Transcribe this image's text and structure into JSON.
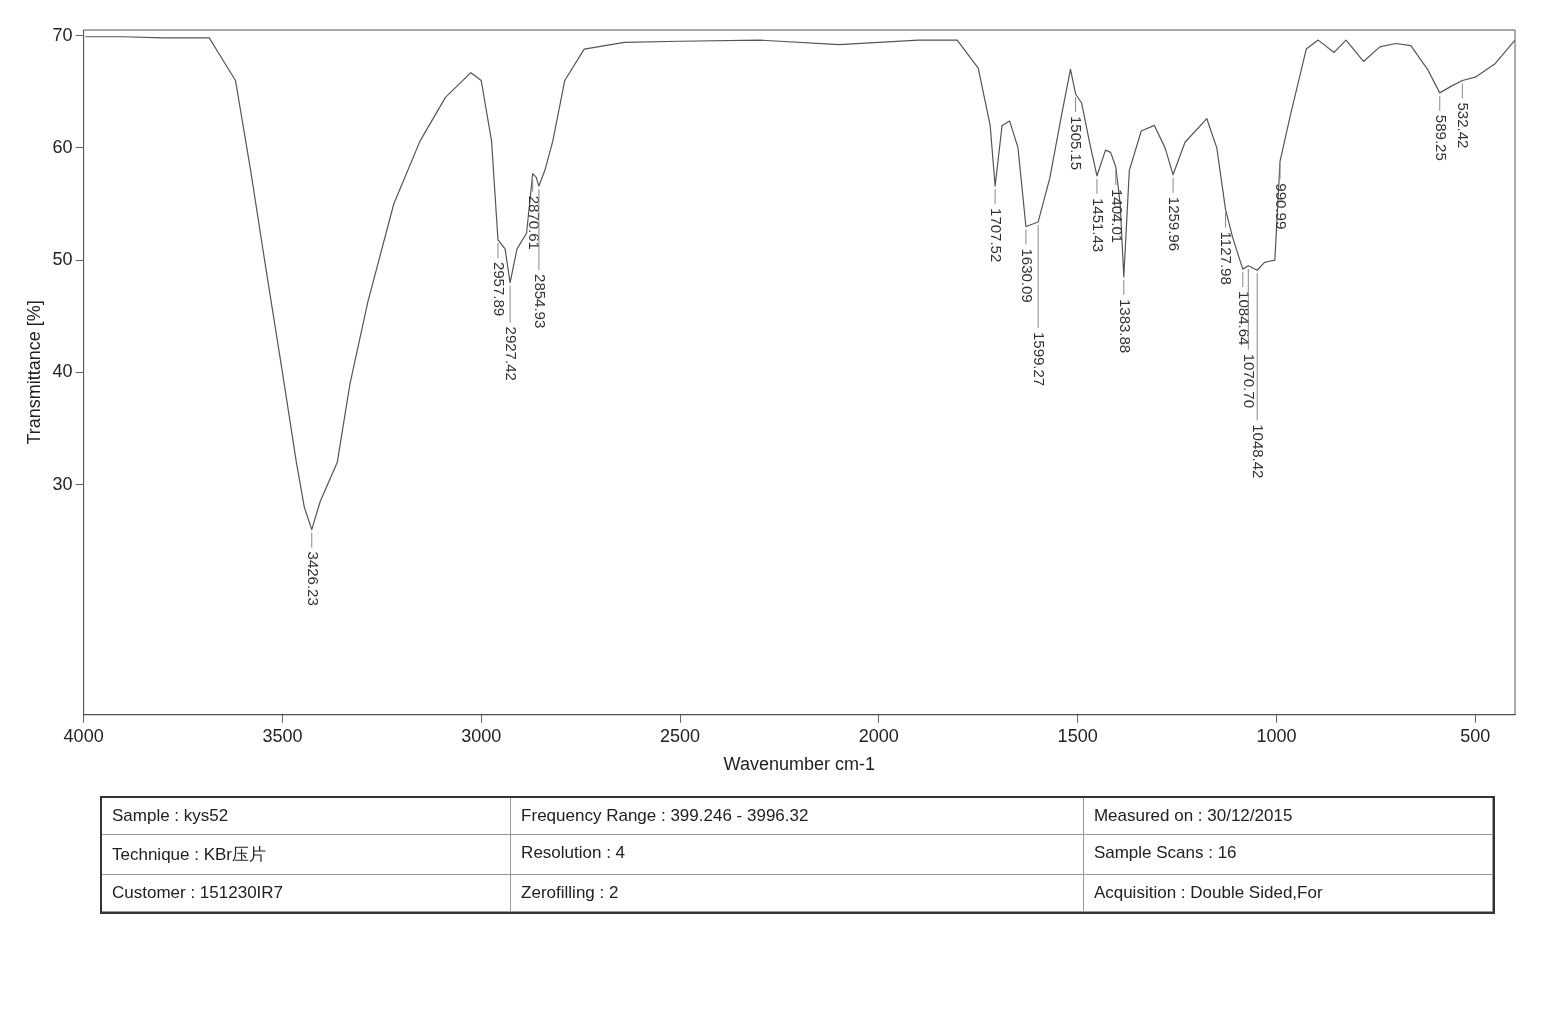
{
  "chart_data": {
    "type": "line",
    "xlabel": "Wavenumber cm-1",
    "ylabel": "Transmittance [%]",
    "xlim": [
      4000,
      400
    ],
    "xticks": [
      4000,
      3500,
      3000,
      2500,
      2000,
      1500,
      1000,
      500
    ],
    "ylim": [
      9.5,
      70.5
    ],
    "yticks": [
      30,
      40,
      50,
      60,
      70
    ],
    "grid": false,
    "legend": false,
    "marker": "none",
    "line_style": "solid",
    "series": [
      {
        "color": "#555555",
        "x": [
          3996,
          3900,
          3800,
          3700,
          3684,
          3658,
          3618,
          3580,
          3544,
          3500,
          3465,
          3445,
          3426.23,
          3405,
          3362,
          3330,
          3285,
          3220,
          3154,
          3090,
          3026,
          3000,
          2974,
          2957.89,
          2940,
          2927.42,
          2910,
          2886,
          2870.61,
          2862,
          2854.93,
          2840,
          2820,
          2790,
          2741,
          2640,
          2500,
          2300,
          2100,
          2000,
          1900,
          1803,
          1750,
          1720,
          1707.52,
          1690,
          1671,
          1650,
          1630.09,
          1599.27,
          1570,
          1540,
          1518,
          1505.15,
          1490,
          1470,
          1451.43,
          1430,
          1417,
          1404.01,
          1393,
          1383.88,
          1370,
          1340,
          1307,
          1280,
          1259.96,
          1230,
          1175,
          1150,
          1127.98,
          1110,
          1084.64,
          1070.7,
          1048.42,
          1030,
          1004,
          990.99,
          965,
          925,
          895,
          855,
          825,
          781,
          740,
          700,
          662,
          620,
          589.25,
          560,
          532.42,
          500,
          450,
          400
        ],
        "values": [
          69.9,
          69.9,
          69.8,
          69.8,
          69.8,
          68.3,
          66,
          58,
          49.8,
          40,
          32,
          28,
          26.0,
          28.5,
          32,
          39,
          46.3,
          55,
          60.6,
          64.5,
          66.7,
          66,
          60.6,
          51.8,
          51,
          48,
          51,
          52.4,
          57.7,
          57.4,
          56.6,
          58,
          60.6,
          66,
          68.8,
          69.4,
          69.5,
          69.6,
          69.2,
          69.4,
          69.6,
          69.6,
          67.1,
          62,
          56.6,
          62,
          62.4,
          60,
          53,
          53.4,
          57.3,
          63,
          67,
          64.8,
          64,
          60.5,
          57.5,
          59.8,
          59.6,
          58.3,
          55,
          48.5,
          58,
          61.5,
          62,
          60,
          57.6,
          60.5,
          62.6,
          60,
          54.5,
          52,
          49.2,
          49.5,
          49.1,
          49.8,
          50,
          58.8,
          62.9,
          68.8,
          69.6,
          68.5,
          69.6,
          67.7,
          69,
          69.3,
          69.1,
          67,
          64.9,
          65.5,
          66,
          66.3,
          67.5,
          69.6
        ]
      }
    ],
    "annotations": [
      {
        "text": "3426.23",
        "x": 3426.23,
        "y": 26.0
      },
      {
        "text": "2957.89",
        "x": 2957.89,
        "y": 51.8
      },
      {
        "text": "2927.42",
        "x": 2927.42,
        "y": 48
      },
      {
        "text": "2870.61",
        "x": 2870.61,
        "y": 57.7
      },
      {
        "text": "2854.93",
        "x": 2854.93,
        "y": 56.6
      },
      {
        "text": "1707.52",
        "x": 1707.52,
        "y": 56.6
      },
      {
        "text": "1630.09",
        "x": 1630.09,
        "y": 53
      },
      {
        "text": "1599.27",
        "x": 1599.27,
        "y": 53.4
      },
      {
        "text": "1505.15",
        "x": 1505.15,
        "y": 64.8
      },
      {
        "text": "1451.43",
        "x": 1451.43,
        "y": 57.5
      },
      {
        "text": "1404.01",
        "x": 1404.01,
        "y": 58.3
      },
      {
        "text": "1383.88",
        "x": 1383.88,
        "y": 48.5
      },
      {
        "text": "1259.96",
        "x": 1259.96,
        "y": 57.6
      },
      {
        "text": "1127.98",
        "x": 1127.98,
        "y": 54.5
      },
      {
        "text": "1084.64",
        "x": 1084.64,
        "y": 49.2
      },
      {
        "text": "1070.70",
        "x": 1070.7,
        "y": 49.5
      },
      {
        "text": "1048.42",
        "x": 1048.42,
        "y": 49.1
      },
      {
        "text": "990.99",
        "x": 990.99,
        "y": 58.8
      },
      {
        "text": "589.25",
        "x": 589.25,
        "y": 64.9
      },
      {
        "text": "532.42",
        "x": 532.42,
        "y": 66
      },
      "Sample : kys52",
      "Frequency Range : 399.246 - 3996.32",
      "Measured on : 30/12/2015",
      "Technique : KBr压片",
      "Resolution : 4",
      "Sample Scans : 16",
      "Customer : 151230IR7",
      "Zerofilling : 2",
      "Acquisition : Double Sided,For"
    ]
  }
}
